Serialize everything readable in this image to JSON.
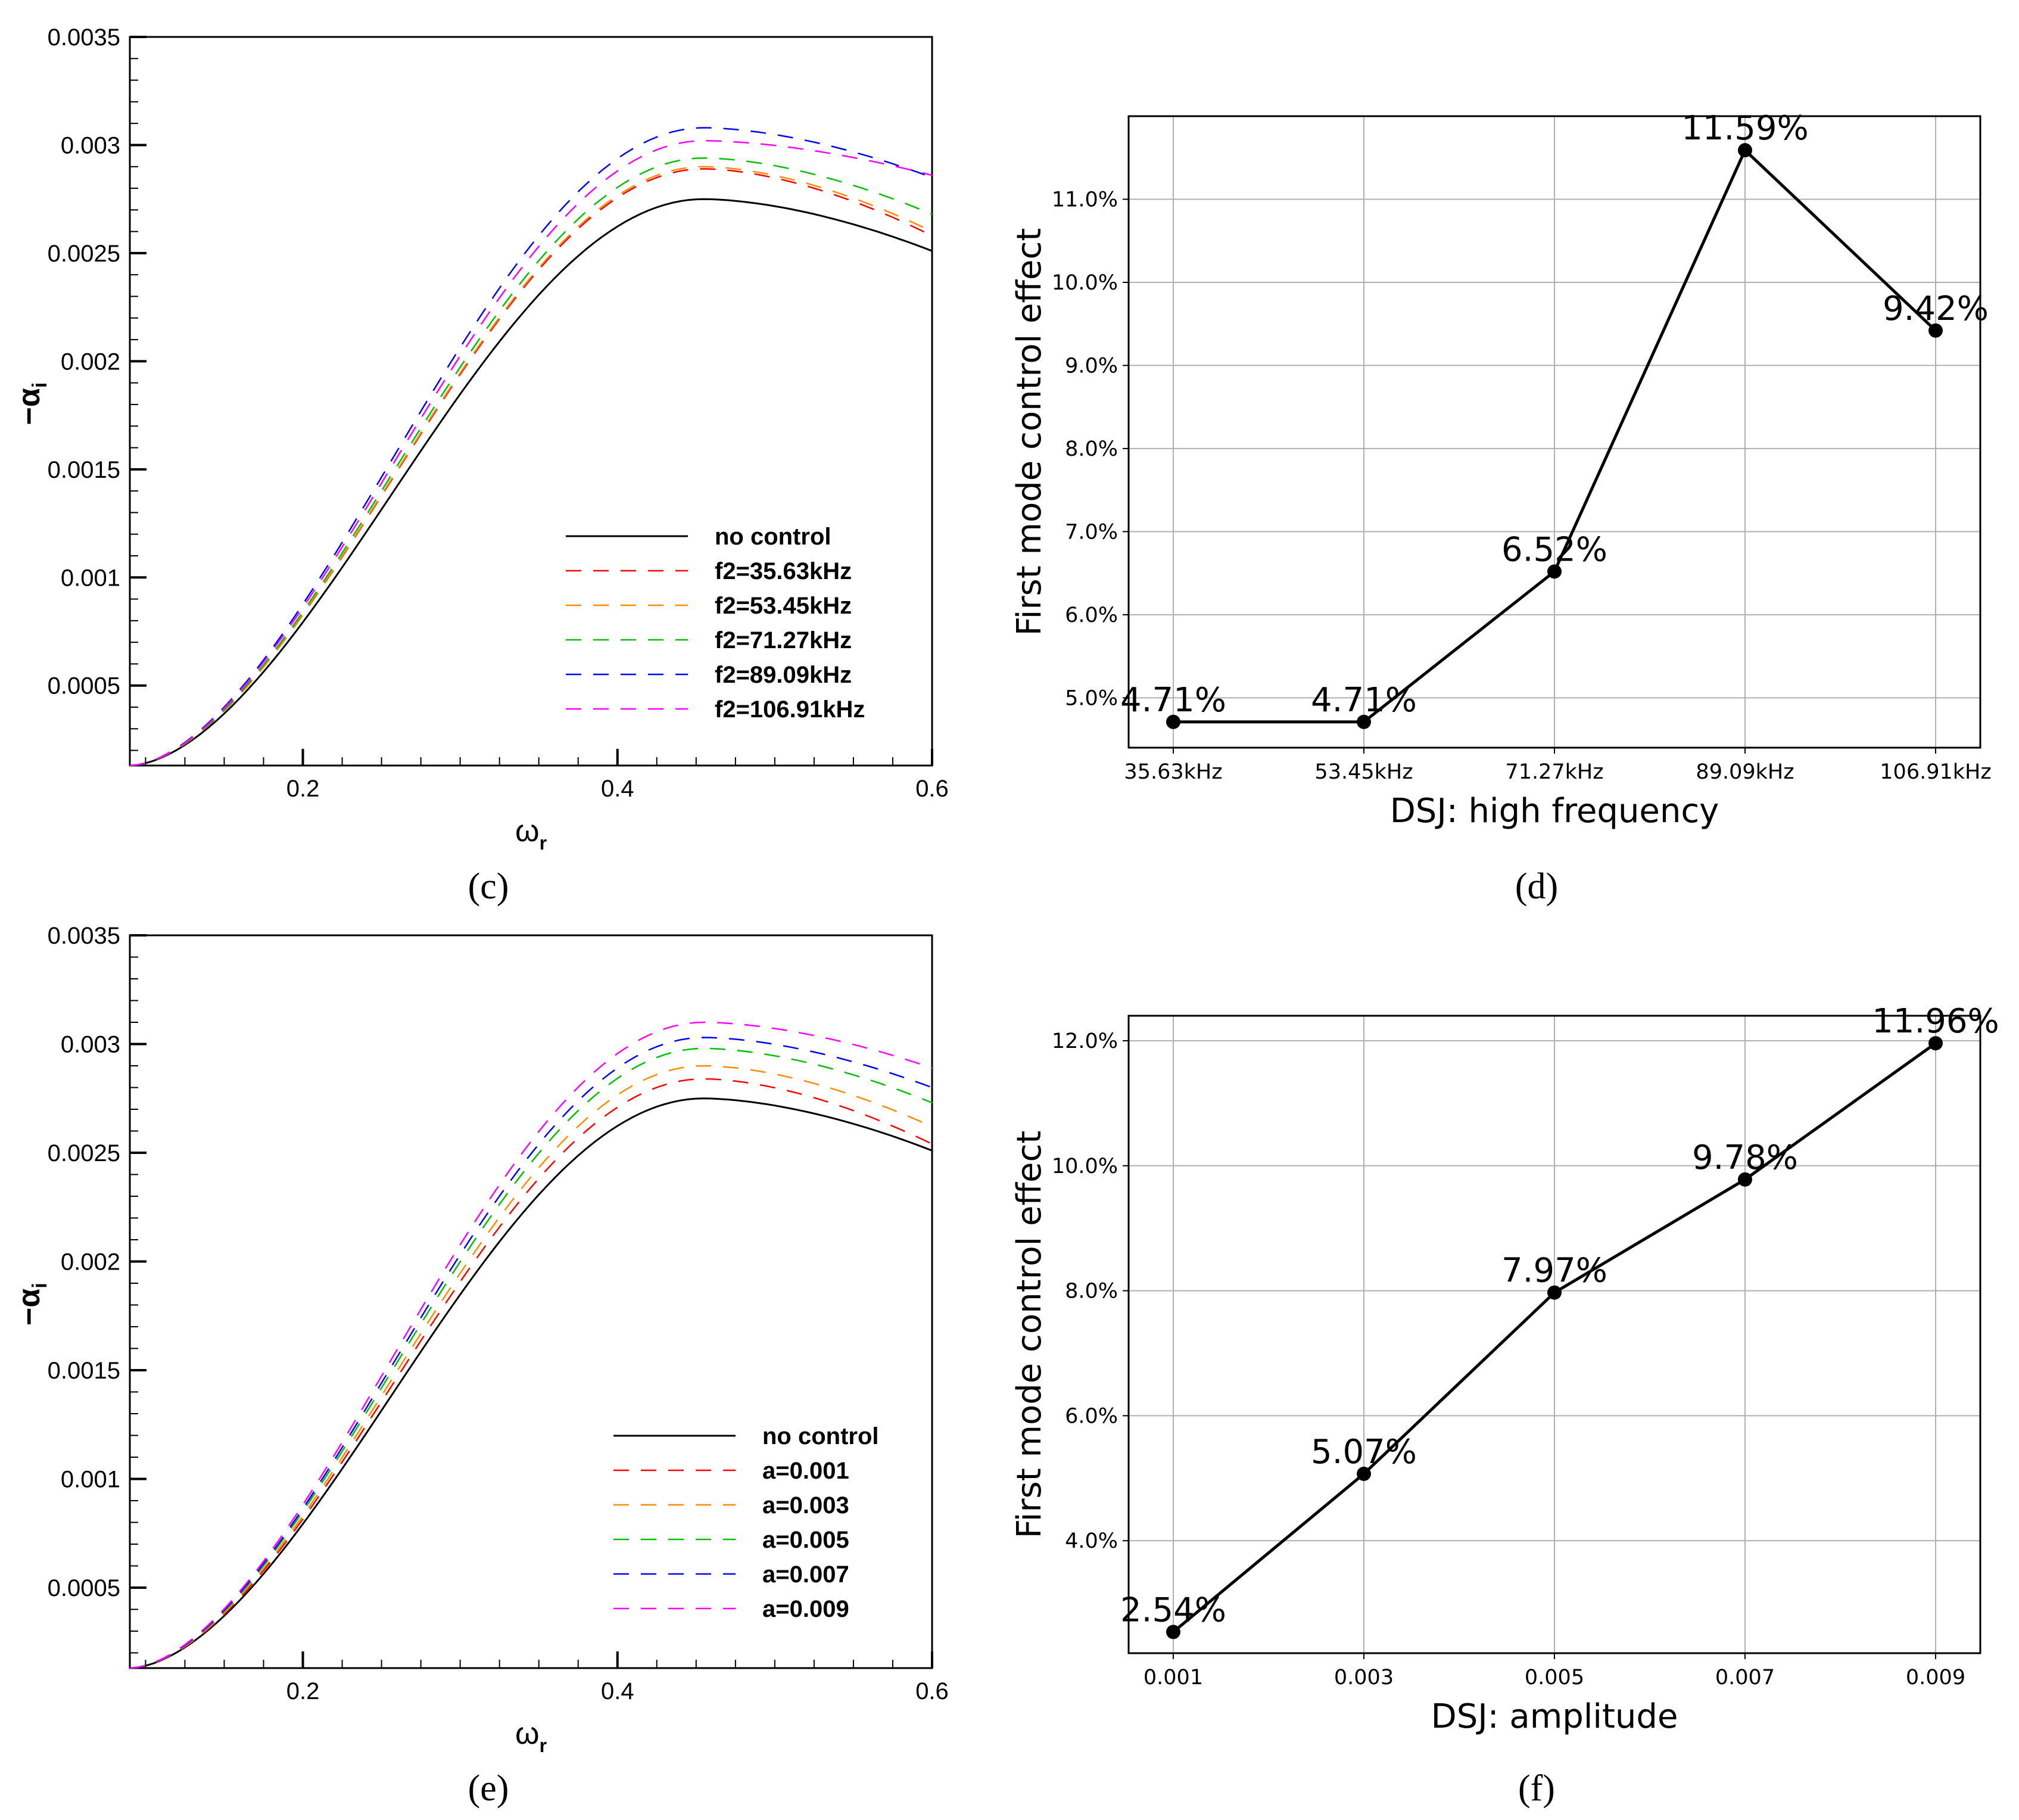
{
  "chart_data": [
    {
      "id": "c",
      "type": "line",
      "caption": "(c)",
      "ylabel": "−α_i",
      "ylabel_main": "−α",
      "ylabel_sub": "i",
      "xlabel_main": "ω",
      "xlabel_sub": "r",
      "xlim": [
        0.09,
        0.6
      ],
      "ylim": [
        0.00013,
        0.0035
      ],
      "x_ticks": [
        "0.2",
        "0.4",
        "0.6"
      ],
      "x_tick_values": [
        0.2,
        0.4,
        0.6
      ],
      "y_ticks": [
        "0.0005",
        "0.001",
        "0.0015",
        "0.002",
        "0.0025",
        "0.003",
        "0.0035"
      ],
      "y_tick_values": [
        0.0005,
        0.001,
        0.0015,
        0.002,
        0.0025,
        0.003,
        0.0035
      ],
      "series": [
        {
          "name": "no control",
          "color": "#000000",
          "dashed": false,
          "peak": 0.00275,
          "end": 0.00251
        },
        {
          "name": "f2=35.63kHz",
          "color": "#ff0000",
          "dashed": true,
          "peak": 0.00289,
          "end": 0.00258
        },
        {
          "name": "f2=53.45kHz",
          "color": "#ff8c00",
          "dashed": true,
          "peak": 0.0029,
          "end": 0.0026
        },
        {
          "name": "f2=71.27kHz",
          "color": "#00c000",
          "dashed": true,
          "peak": 0.00294,
          "end": 0.00268
        },
        {
          "name": "f2=89.09kHz",
          "color": "#0000ff",
          "dashed": true,
          "peak": 0.00308,
          "end": 0.00285
        },
        {
          "name": "f2=106.91kHz",
          "color": "#ff00ff",
          "dashed": true,
          "peak": 0.00302,
          "end": 0.00286
        }
      ]
    },
    {
      "id": "d",
      "type": "line",
      "caption": "(d)",
      "xlabel": "DSJ: high frequency",
      "ylabel": "First mode control effect",
      "categories": [
        "35.63kHz",
        "53.45kHz",
        "71.27kHz",
        "89.09kHz",
        "106.91kHz"
      ],
      "values": [
        4.71,
        4.71,
        6.52,
        11.59,
        9.42
      ],
      "annotations": [
        "4.71%",
        "4.71%",
        "6.52%",
        "11.59%",
        "9.42%"
      ],
      "ylim": [
        4.4,
        12.0
      ],
      "y_ticks": [
        "5.0%",
        "6.0%",
        "7.0%",
        "8.0%",
        "9.0%",
        "10.0%",
        "11.0%"
      ],
      "y_tick_values": [
        5,
        6,
        7,
        8,
        9,
        10,
        11
      ]
    },
    {
      "id": "e",
      "type": "line",
      "caption": "(e)",
      "ylabel": "−α_i",
      "ylabel_main": "−α",
      "ylabel_sub": "i",
      "xlabel_main": "ω",
      "xlabel_sub": "r",
      "xlim": [
        0.09,
        0.6
      ],
      "ylim": [
        0.00013,
        0.0035
      ],
      "x_ticks": [
        "0.2",
        "0.4",
        "0.6"
      ],
      "x_tick_values": [
        0.2,
        0.4,
        0.6
      ],
      "y_ticks": [
        "0.0005",
        "0.001",
        "0.0015",
        "0.002",
        "0.0025",
        "0.003",
        "0.0035"
      ],
      "y_tick_values": [
        0.0005,
        0.001,
        0.0015,
        0.002,
        0.0025,
        0.003,
        0.0035
      ],
      "series": [
        {
          "name": "no control",
          "color": "#000000",
          "dashed": false,
          "peak": 0.00275,
          "end": 0.00251
        },
        {
          "name": "a=0.001",
          "color": "#ff0000",
          "dashed": true,
          "peak": 0.00284,
          "end": 0.00254
        },
        {
          "name": "a=0.003",
          "color": "#ff8c00",
          "dashed": true,
          "peak": 0.0029,
          "end": 0.00262
        },
        {
          "name": "a=0.005",
          "color": "#00c000",
          "dashed": true,
          "peak": 0.00298,
          "end": 0.00273
        },
        {
          "name": "a=0.007",
          "color": "#0000ff",
          "dashed": true,
          "peak": 0.00303,
          "end": 0.0028
        },
        {
          "name": "a=0.009",
          "color": "#ff00ff",
          "dashed": true,
          "peak": 0.0031,
          "end": 0.00289
        }
      ]
    },
    {
      "id": "f",
      "type": "line",
      "caption": "(f)",
      "xlabel": "DSJ: amplitude",
      "ylabel": "First mode control effect",
      "categories": [
        "0.001",
        "0.003",
        "0.005",
        "0.007",
        "0.009"
      ],
      "values": [
        2.54,
        5.07,
        7.97,
        9.78,
        11.96
      ],
      "annotations": [
        "2.54%",
        "5.07%",
        "7.97%",
        "9.78%",
        "11.96%"
      ],
      "ylim": [
        2.2,
        12.4
      ],
      "y_ticks": [
        "4.0%",
        "6.0%",
        "8.0%",
        "10.0%",
        "12.0%"
      ],
      "y_tick_values": [
        4,
        6,
        8,
        10,
        12
      ]
    }
  ]
}
